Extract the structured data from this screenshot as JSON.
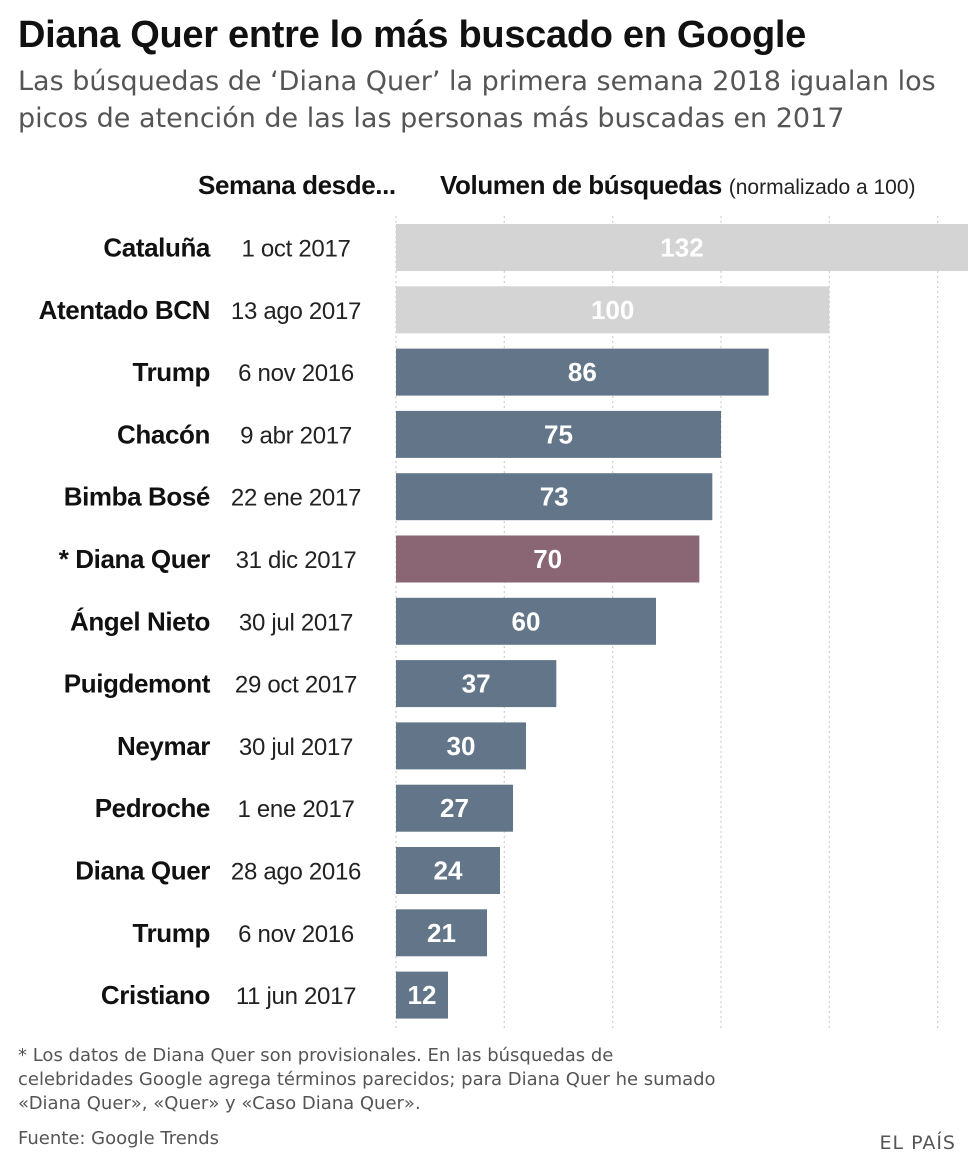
{
  "header": {
    "title": "Diana Quer entre lo más buscado en Google",
    "subtitle": "Las búsquedas de ‘Diana Quer’ la primera semana 2018 igualan los picos de atención de las las personas más buscadas en 2017"
  },
  "column_headers": {
    "week": "Semana desde...",
    "volume": "Volumen de búsquedas",
    "volume_note": "(normalizado a 100)"
  },
  "colors": {
    "highlight_gray": "#d4d4d4",
    "default_bar": "#637689",
    "diana_bar": "#8a6573",
    "grid": "#cfcfcf"
  },
  "chart_data": {
    "type": "bar",
    "orientation": "horizontal",
    "categories": [
      "Cataluña",
      "Atentado BCN",
      "Trump",
      "Chacón",
      "Bimba Bosé",
      "* Diana Quer",
      "Ángel Nieto",
      "Puigdemont",
      "Neymar",
      "Pedroche",
      "Diana Quer",
      "Trump",
      "Cristiano"
    ],
    "dates": [
      "1 oct 2017",
      "13 ago 2017",
      "6 nov 2016",
      "9 abr 2017",
      "22 ene 2017",
      "31 dic 2017",
      "30 jul 2017",
      "29 oct 2017",
      "30 jul 2017",
      "1 ene 2017",
      "28 ago 2016",
      "6 nov 2016",
      "11 jun 2017"
    ],
    "values": [
      132,
      100,
      86,
      75,
      73,
      70,
      60,
      37,
      30,
      27,
      24,
      21,
      12
    ],
    "bar_colors": [
      "#d4d4d4",
      "#d4d4d4",
      "#637689",
      "#637689",
      "#637689",
      "#8a6573",
      "#637689",
      "#637689",
      "#637689",
      "#637689",
      "#637689",
      "#637689",
      "#637689"
    ],
    "xlim": [
      0,
      132
    ],
    "grid": true,
    "grid_values": [
      0,
      25,
      50,
      75,
      100,
      125
    ]
  },
  "footer": {
    "footnote": "* Los datos de Diana Quer son provisionales. En las búsquedas de celebridades Google agrega términos parecidos; para Diana Quer he sumado «Diana Quer», «Quer» y «Caso Diana Quer».",
    "source": "Fuente: Google Trends",
    "brand": "EL PAÍS"
  }
}
